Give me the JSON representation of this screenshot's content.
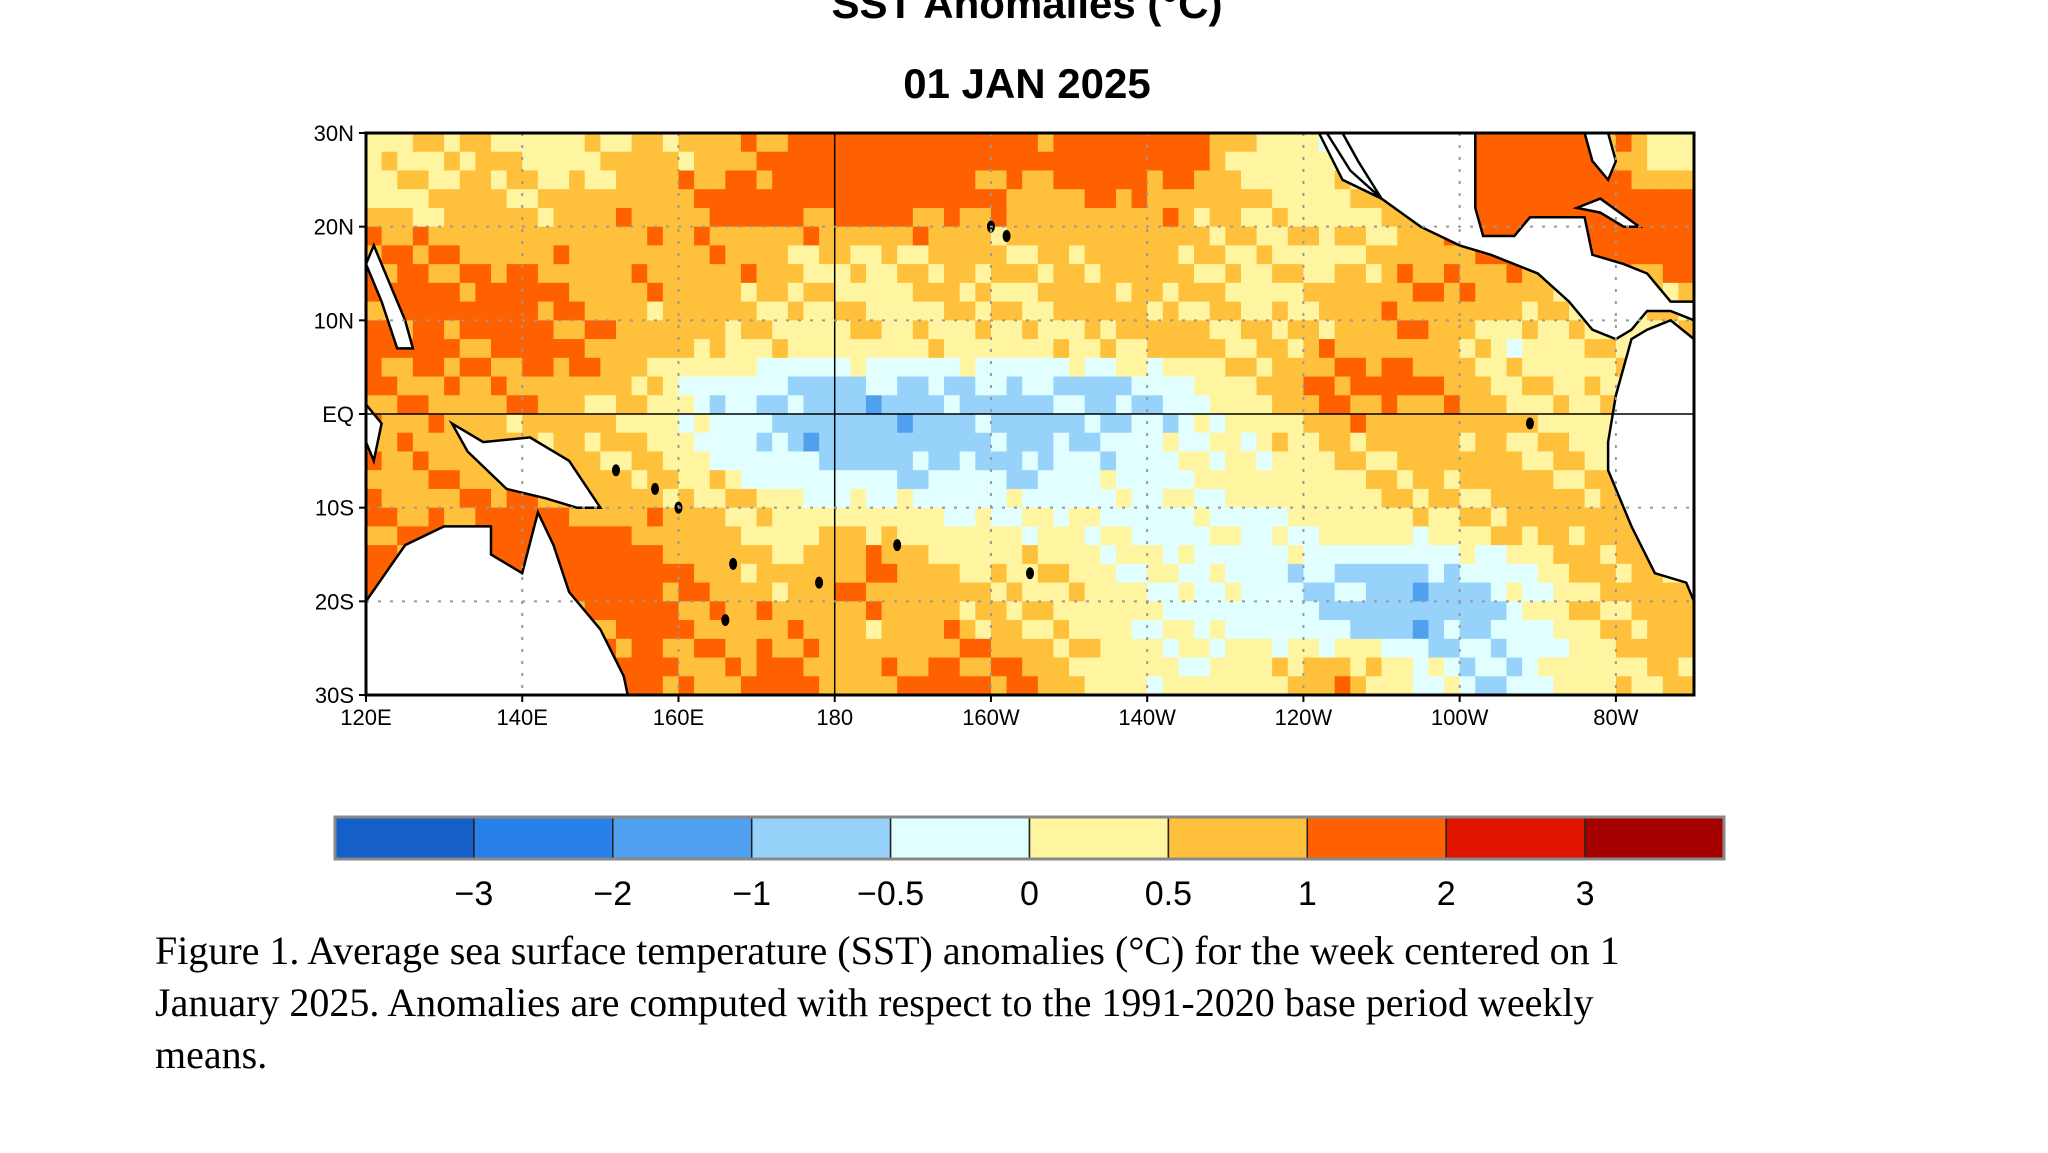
{
  "chart_data": {
    "type": "heatmap",
    "title": "SST Anomalies (°C)",
    "subtitle": "01 JAN 2025",
    "lon_range": [
      120,
      290
    ],
    "lat_range": [
      -30,
      30
    ],
    "lon_ticks": [
      "120E",
      "140E",
      "160E",
      "180",
      "160W",
      "140W",
      "120W",
      "100W",
      "80W"
    ],
    "lat_ticks": [
      "30N",
      "20N",
      "10N",
      "EQ",
      "10S",
      "20S",
      "30S"
    ],
    "grid_lons_center": [
      125,
      135,
      145,
      155,
      165,
      175,
      185,
      195,
      205,
      215,
      225,
      235,
      245,
      255,
      265,
      275,
      285
    ],
    "grid_lats_center": [
      27.5,
      22.5,
      17.5,
      12.5,
      7.5,
      2.5,
      -2.5,
      -7.5,
      -12.5,
      -17.5,
      -22.5,
      -27.5
    ],
    "values": [
      [
        0.3,
        0.6,
        0.2,
        0.7,
        0.7,
        1.3,
        1.6,
        1.5,
        1.2,
        1.5,
        1.4,
        0.2,
        0.2,
        1.2,
        1.6,
        1.5,
        0.3
      ],
      [
        0.4,
        0.7,
        0.6,
        0.8,
        1.2,
        1.3,
        1.5,
        1.2,
        0.8,
        1.0,
        0.8,
        0.4,
        0.3,
        0.8,
        1.2,
        1.3,
        1.2
      ],
      [
        1.0,
        0.8,
        0.8,
        0.8,
        0.9,
        0.6,
        0.4,
        0.7,
        0.6,
        0.7,
        0.6,
        0.4,
        0.4,
        0.8,
        1.2,
        1.4,
        1.5
      ],
      [
        1.2,
        1.3,
        1.1,
        0.8,
        0.8,
        0.5,
        0.4,
        0.6,
        0.4,
        0.7,
        0.5,
        0.4,
        0.6,
        1.2,
        0.6,
        0.6,
        0.6
      ],
      [
        1.2,
        1.0,
        1.3,
        0.8,
        0.6,
        0.4,
        0.4,
        0.4,
        0.3,
        0.6,
        0.7,
        0.5,
        0.8,
        0.8,
        0.2,
        0.3,
        0.3
      ],
      [
        1.0,
        0.9,
        0.8,
        0.5,
        -0.3,
        -0.7,
        -0.7,
        -0.6,
        -0.6,
        -0.7,
        -0.3,
        0.6,
        1.2,
        1.1,
        0.5,
        0.4,
        0.4
      ],
      [
        1.0,
        0.8,
        0.7,
        0.5,
        -0.2,
        -0.8,
        -0.9,
        -0.8,
        -0.7,
        -0.5,
        -0.1,
        0.2,
        0.6,
        0.7,
        0.6,
        0.3,
        0.3
      ],
      [
        0.9,
        0.9,
        0.8,
        0.7,
        0.5,
        -0.2,
        -0.3,
        -0.3,
        -0.3,
        -0.2,
        -0.1,
        0.2,
        0.4,
        0.6,
        0.7,
        0.6,
        0.6
      ],
      [
        1.0,
        1.2,
        1.3,
        0.9,
        0.6,
        0.4,
        0.5,
        0.2,
        0.2,
        0.0,
        -0.1,
        -0.1,
        0.2,
        0.3,
        0.6,
        0.7,
        0.7
      ],
      [
        1.2,
        1.2,
        1.3,
        1.4,
        0.8,
        0.7,
        1.2,
        0.6,
        0.5,
        0.2,
        -0.1,
        -0.3,
        -0.6,
        -0.8,
        -0.4,
        0.6,
        0.6
      ],
      [
        1.1,
        1.1,
        0.9,
        1.3,
        1.0,
        0.8,
        0.6,
        0.8,
        0.5,
        0.2,
        0.0,
        -0.3,
        -0.6,
        -0.9,
        -0.6,
        0.4,
        0.7
      ],
      [
        1.0,
        1.0,
        1.0,
        1.2,
        0.8,
        1.2,
        0.7,
        1.2,
        1.0,
        0.3,
        0.1,
        0.3,
        1.0,
        0.0,
        -0.5,
        0.2,
        0.5
      ]
    ],
    "colorbar": {
      "levels": [
        -3,
        -2,
        -1,
        -0.5,
        0,
        0.5,
        1,
        2,
        3
      ],
      "labels": [
        "−3",
        "−2",
        "−1",
        "−0.5",
        "0",
        "0.5",
        "1",
        "2",
        "3"
      ],
      "colors": [
        "#1560c8",
        "#2880e8",
        "#50a0f0",
        "#96d2fa",
        "#e1ffff",
        "#fff5a0",
        "#ffc03c",
        "#ff6000",
        "#e11400",
        "#a50000"
      ]
    }
  },
  "caption": {
    "line1": "Figure 1. Average sea surface temperature (SST) anomalies (°C) for the week centered on 1",
    "line2": "January 2025.  Anomalies are computed with respect to the 1991-2020 base period weekly",
    "line3": "means."
  }
}
